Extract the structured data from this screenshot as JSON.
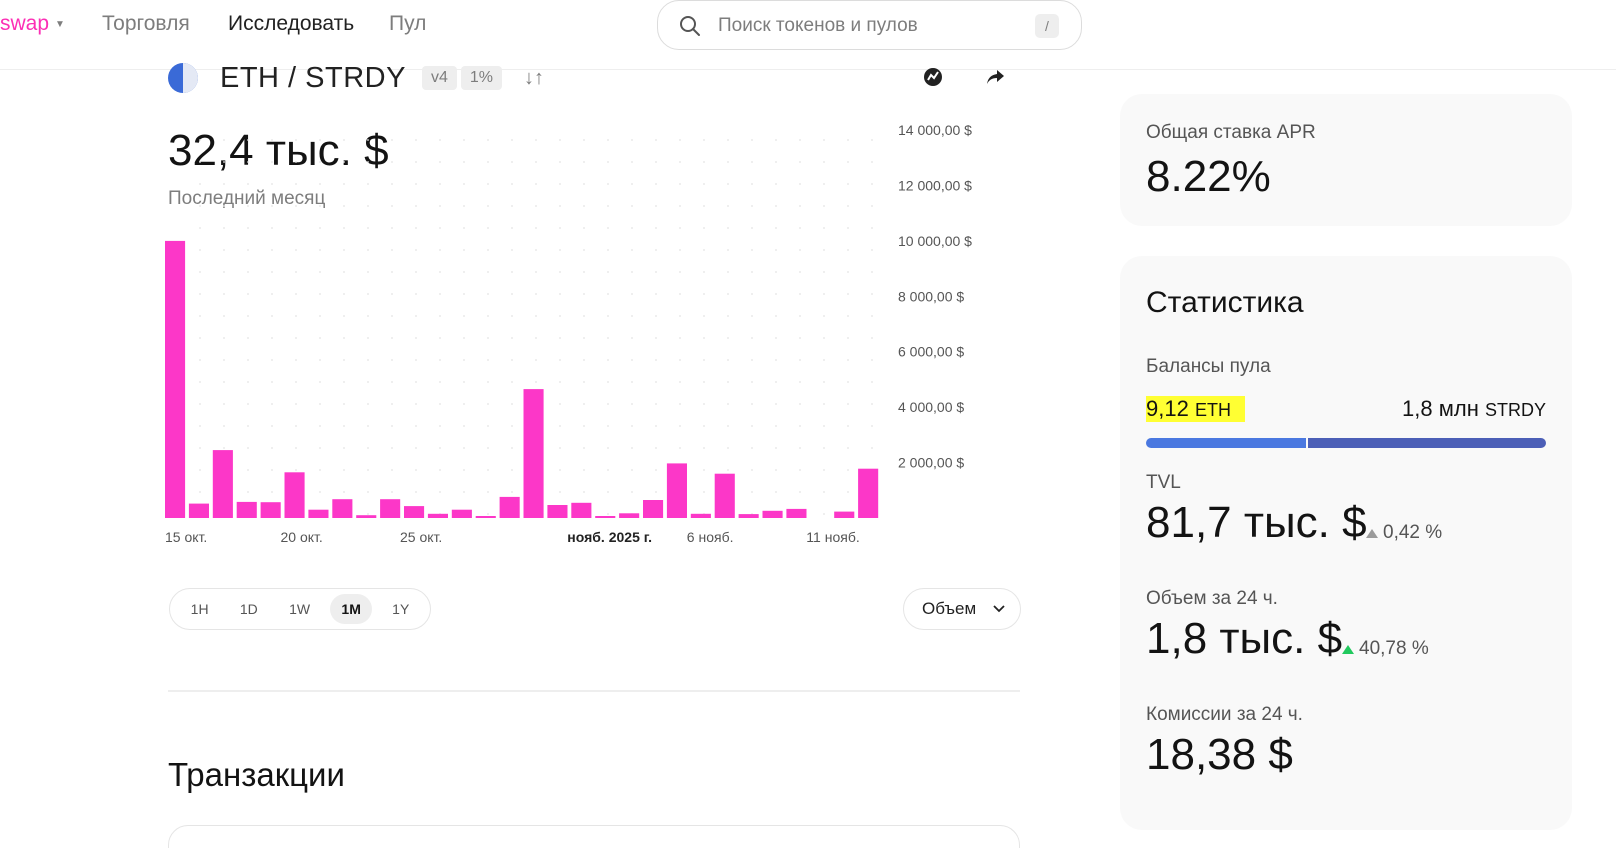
{
  "nav": {
    "brand": "swap",
    "items": [
      "Торговля",
      "Исследовать",
      "Пул"
    ],
    "active_index": 1
  },
  "search": {
    "placeholder": "Поиск токенов и пулов",
    "shortcut": "/"
  },
  "pair": {
    "name": "ETH / STRDY",
    "version": "v4",
    "fee": "1%"
  },
  "volume": {
    "value": "32,4 тыс. $",
    "period": "Последний месяц"
  },
  "chart_data": {
    "type": "bar",
    "series_color": "#fc37c8",
    "ylim": [
      0,
      14000
    ],
    "y_ticks": [
      2000,
      4000,
      6000,
      8000,
      10000,
      12000,
      14000
    ],
    "y_tick_labels": [
      "2 000,00 $",
      "4 000,00 $",
      "6 000,00 $",
      "8 000,00 $",
      "10 000,00 $",
      "12 000,00 $",
      "14 000,00 $"
    ],
    "x_labels": [
      {
        "text": "15 окт.",
        "index": 0,
        "bold": false
      },
      {
        "text": "20 окт.",
        "index": 5,
        "bold": false
      },
      {
        "text": "25 окт.",
        "index": 10,
        "bold": false
      },
      {
        "text": "нояб. 2025 г.",
        "index": 17,
        "bold": true
      },
      {
        "text": "6 нояб.",
        "index": 22,
        "bold": false
      },
      {
        "text": "11 нояб.",
        "index": 27,
        "bold": false
      }
    ],
    "values": [
      10000,
      520,
      2450,
      580,
      570,
      1650,
      300,
      680,
      100,
      680,
      430,
      150,
      300,
      40,
      760,
      4650,
      470,
      550,
      50,
      170,
      650,
      1970,
      150,
      1600,
      140,
      260,
      330,
      0,
      230,
      1780
    ]
  },
  "ranges": {
    "items": [
      "1H",
      "1D",
      "1W",
      "1M",
      "1Y"
    ],
    "active_index": 3
  },
  "metric_dropdown": {
    "value": "Объем"
  },
  "transactions": {
    "title": "Транзакции"
  },
  "apr": {
    "label": "Общая ставка APR",
    "value": "8.22%"
  },
  "stats": {
    "title": "Статистика",
    "balances_label": "Балансы пула",
    "balance_left_amount": "9,12",
    "balance_left_symbol": "ETH",
    "balance_right_amount": "1,8 млн",
    "balance_right_symbol": "STRDY",
    "balance_left_share": 0.4,
    "tvl_label": "TVL",
    "tvl_value": "81,7 тыс. $",
    "tvl_change": "0,42 %",
    "vol_label": "Объем за 24 ч.",
    "vol_value": "1,8 тыс. $",
    "vol_change": "40,78 %",
    "fees_label": "Комиссии за 24 ч.",
    "fees_value": "18,38 $"
  }
}
